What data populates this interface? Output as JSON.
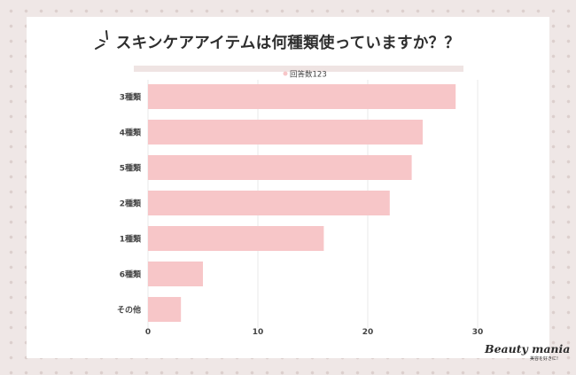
{
  "header": {
    "title": "スキンケアアイテムは何種類使っていますか？？"
  },
  "brand": {
    "name": "Beauty mania",
    "tagline": "美容を好きに!"
  },
  "colors": {
    "bar": "#f7c6c8",
    "legend_dot": "#f7c6c8",
    "grid": "#e9e9e9",
    "text": "#444444"
  },
  "chart_data": {
    "type": "bar",
    "orientation": "horizontal",
    "categories": [
      "3種類",
      "4種類",
      "5種類",
      "2種類",
      "1種類",
      "6種類",
      "その他"
    ],
    "series": [
      {
        "name": "回答数123",
        "values": [
          28,
          25,
          24,
          22,
          16,
          5,
          3
        ]
      }
    ],
    "xlim": [
      0,
      30
    ],
    "xticks": [
      0,
      10,
      20,
      30
    ],
    "legend": "top-center",
    "grid": true
  }
}
